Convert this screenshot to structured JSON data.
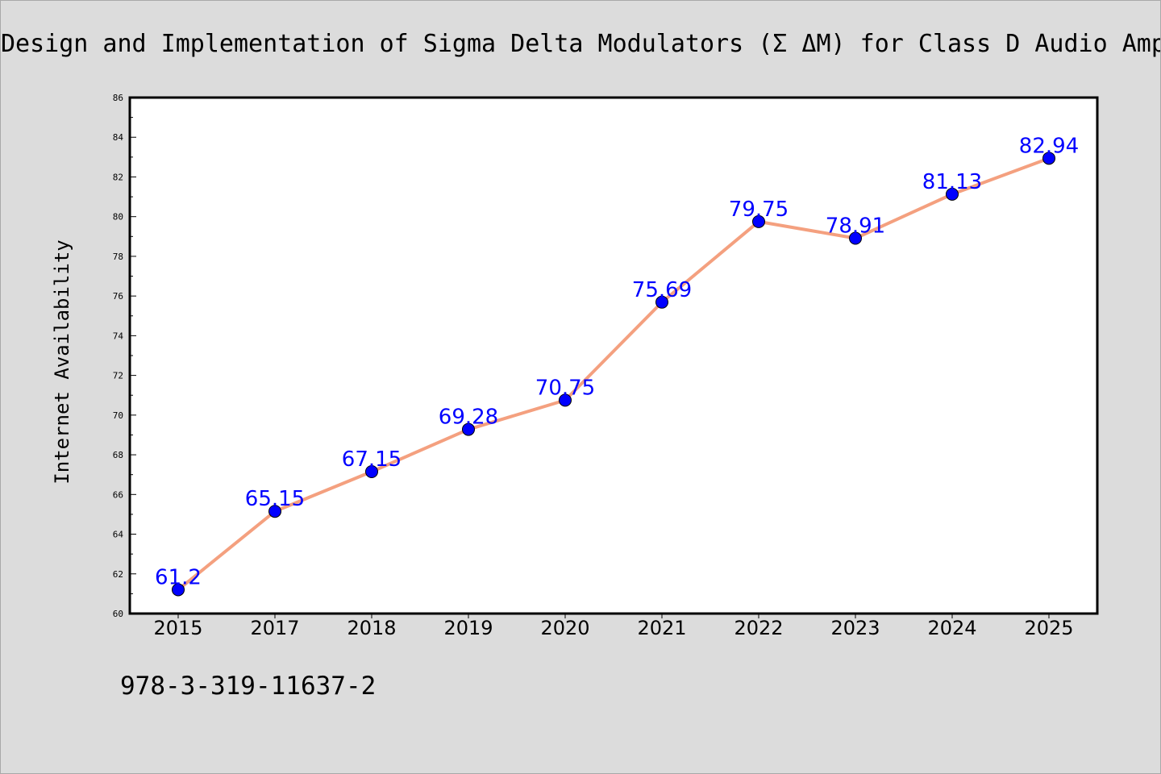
{
  "title": "Design and Implementation of Sigma Delta Modulators (Σ ΔM) for Class D Audio Amplifiers",
  "footer_text": "978-3-319-11637-2",
  "chart_data": {
    "type": "line",
    "title": "Design and Implementation of Sigma Delta Modulators (Σ ΔM) for Class D Audio Amplifiers",
    "xlabel": "",
    "ylabel": "Internet Availability",
    "categories": [
      "2015",
      "2017",
      "2018",
      "2019",
      "2020",
      "2021",
      "2022",
      "2023",
      "2024",
      "2025"
    ],
    "series": [
      {
        "values": [
          61.2,
          65.15,
          67.15,
          69.28,
          70.75,
          75.69,
          79.75,
          78.91,
          81.13,
          82.94
        ],
        "labels": [
          "61.2",
          "65.15",
          "67.15",
          "69.28",
          "70.75",
          "75.69",
          "79.75",
          "78.91",
          "81.13",
          "82.94"
        ],
        "line_color": "#f4a07f",
        "marker_color": "#0000ff"
      }
    ],
    "ylim": [
      60,
      86
    ],
    "yticks": [
      60,
      62,
      64,
      66,
      68,
      70,
      72,
      74,
      76,
      78,
      80,
      82,
      84,
      86
    ],
    "grid": false,
    "legend": "none",
    "background": "#ffffff",
    "page_background": "#dcdcdc",
    "data_label_color": "#0000ff"
  }
}
